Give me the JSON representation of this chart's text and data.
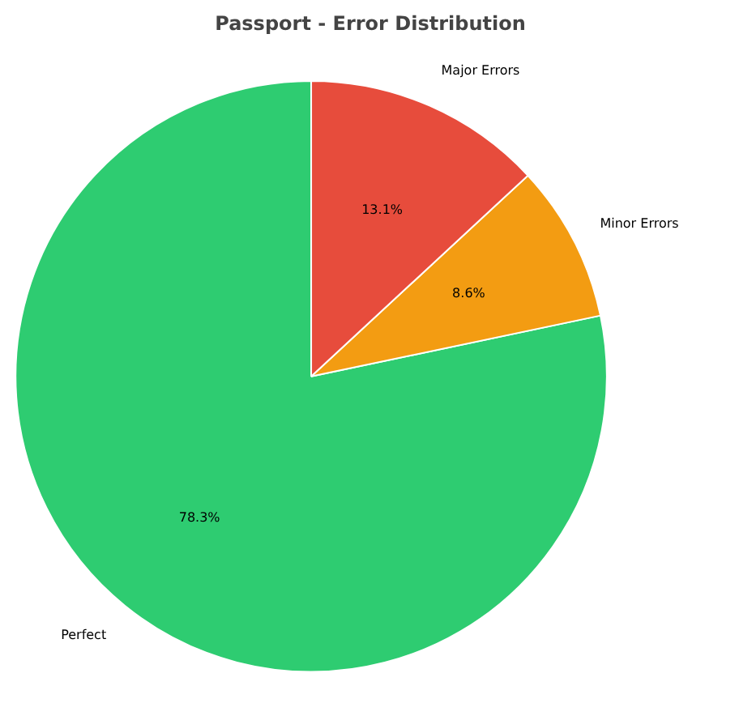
{
  "chart_data": {
    "type": "pie",
    "title": "Passport - Error Distribution",
    "categories": [
      "Perfect",
      "Minor Errors",
      "Major Errors"
    ],
    "values": [
      78.3,
      8.6,
      13.1
    ],
    "colors": [
      "#2ecc71",
      "#f39c12",
      "#e74c3c"
    ],
    "value_labels": [
      "78.3%",
      "8.6%",
      "13.1%"
    ]
  }
}
